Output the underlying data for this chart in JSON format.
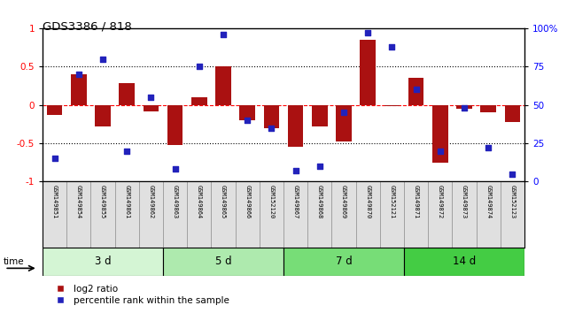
{
  "title": "GDS3386 / 818",
  "samples": [
    "GSM149851",
    "GSM149854",
    "GSM149855",
    "GSM149861",
    "GSM149862",
    "GSM149863",
    "GSM149864",
    "GSM149865",
    "GSM149866",
    "GSM152120",
    "GSM149867",
    "GSM149868",
    "GSM149869",
    "GSM149870",
    "GSM152121",
    "GSM149871",
    "GSM149872",
    "GSM149873",
    "GSM149874",
    "GSM152123"
  ],
  "log2_ratio": [
    -0.13,
    0.4,
    -0.28,
    0.28,
    -0.08,
    -0.52,
    0.1,
    0.5,
    -0.2,
    -0.3,
    -0.55,
    -0.28,
    -0.48,
    0.85,
    -0.02,
    0.35,
    -0.75,
    -0.05,
    -0.1,
    -0.22
  ],
  "percentile_rank": [
    15,
    70,
    80,
    20,
    55,
    8,
    75,
    96,
    40,
    35,
    7,
    10,
    45,
    97,
    88,
    60,
    20,
    48,
    22,
    5
  ],
  "groups": [
    {
      "label": "3 d",
      "start": 0,
      "end": 5,
      "color": "#d4f5d4"
    },
    {
      "label": "5 d",
      "start": 5,
      "end": 10,
      "color": "#aeeaae"
    },
    {
      "label": "7 d",
      "start": 10,
      "end": 15,
      "color": "#77dd77"
    },
    {
      "label": "14 d",
      "start": 15,
      "end": 20,
      "color": "#44cc44"
    }
  ],
  "bar_color": "#aa1111",
  "dot_color": "#2222bb",
  "yticks_left": [
    -1,
    -0.5,
    0,
    0.5,
    1
  ],
  "yticks_right": [
    0,
    25,
    50,
    75,
    100
  ],
  "legend_labels": [
    "log2 ratio",
    "percentile rank within the sample"
  ],
  "bg_color": "#e0e0e0"
}
